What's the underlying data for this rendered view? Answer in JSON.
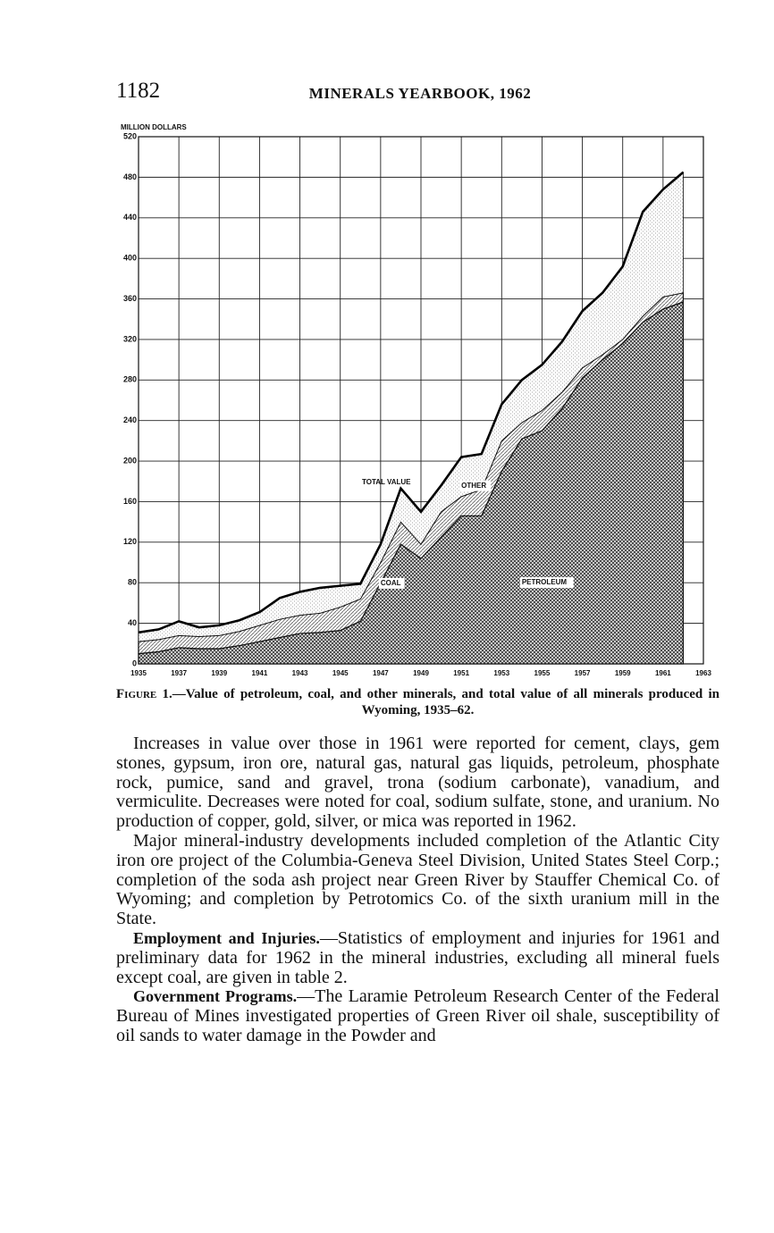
{
  "page_number": "1182",
  "running_title": "MINERALS YEARBOOK, 1962",
  "chart_data": {
    "type": "stacked_area",
    "y_label": "MILLION DOLLARS",
    "annotation": "TOTAL VALUE",
    "x": [
      1935,
      1936,
      1937,
      1938,
      1939,
      1940,
      1941,
      1942,
      1943,
      1944,
      1945,
      1946,
      1947,
      1948,
      1949,
      1950,
      1951,
      1952,
      1953,
      1954,
      1955,
      1956,
      1957,
      1958,
      1959,
      1960,
      1961,
      1962
    ],
    "series": [
      {
        "name": "PETROLEUM",
        "color": "#444444",
        "values": [
          10,
          12,
          16,
          15,
          15,
          18,
          22,
          26,
          30,
          31,
          33,
          42,
          80,
          118,
          104,
          125,
          146,
          146,
          190,
          222,
          230,
          252,
          282,
          300,
          316,
          337,
          350,
          357
        ]
      },
      {
        "name": "COAL",
        "color": "#666666",
        "values": [
          12,
          12,
          12,
          12,
          13,
          14,
          16,
          18,
          18,
          19,
          23,
          22,
          20,
          22,
          14,
          25,
          19,
          26,
          30,
          16,
          20,
          16,
          10,
          5,
          4,
          6,
          12,
          9
        ]
      },
      {
        "name": "OTHER",
        "color": "#888888",
        "values": [
          9,
          10,
          14,
          9,
          10,
          11,
          13,
          21,
          23,
          25,
          21,
          15,
          18,
          33,
          32,
          26,
          39,
          35,
          36,
          42,
          45,
          50,
          56,
          61,
          72,
          103,
          106,
          119
        ]
      }
    ],
    "xlim": [
      1935,
      1963
    ],
    "xticks": [
      1935,
      1937,
      1939,
      1941,
      1943,
      1945,
      1947,
      1949,
      1951,
      1953,
      1955,
      1957,
      1959,
      1961,
      1963
    ],
    "ylim": [
      0,
      520
    ],
    "yticks": [
      0,
      40,
      80,
      120,
      160,
      200,
      240,
      280,
      320,
      360,
      400,
      440,
      480,
      520
    ],
    "grid": true
  },
  "caption": {
    "label": "Figure 1.",
    "text": "—Value of petroleum, coal, and other minerals, and total value of all minerals produced in Wyoming, 1935–62."
  },
  "paragraphs": [
    {
      "text": "Increases in value over those in 1961 were reported for cement, clays, gem stones, gypsum, iron ore, natural gas, natural gas liquids, petroleum, phosphate rock, pumice, sand and gravel, trona (sodium carbonate), vanadium, and vermiculite. Decreases were noted for coal, sodium sulfate, stone, and uranium. No production of copper, gold, silver, or mica was reported in 1962."
    },
    {
      "text": "Major mineral-industry developments included completion of the Atlantic City iron ore project of the Columbia-Geneva Steel Division, United States Steel Corp.; completion of the soda ash project near Green River by Stauffer Chemical Co. of Wyoming; and completion by Petrotomics Co. of the sixth uranium mill in the State."
    },
    {
      "lead": "Employment and Injuries.",
      "text": "—Statistics of employment and injuries for 1961 and preliminary data for 1962 in the mineral industries, excluding all mineral fuels except coal, are given in table 2."
    },
    {
      "lead": "Government Programs.",
      "text": "—The Laramie Petroleum Research Center of the Federal Bureau of Mines investigated properties of Green River oil shale, susceptibility of oil sands to water damage in the Powder and"
    }
  ]
}
